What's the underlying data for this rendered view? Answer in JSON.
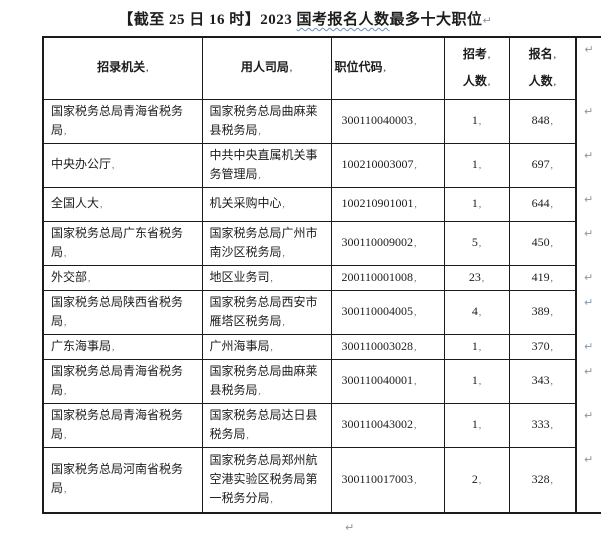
{
  "title": {
    "part1": "【截至 25 日 16 时】2023 ",
    "wavy": "国考报名人数",
    "part3": "最多十大职位"
  },
  "marks": {
    "paragraph": "↵",
    "cell": ","
  },
  "table": {
    "headers": {
      "col1": "招录机关",
      "col2": "用人司局",
      "col3": "职位代码",
      "col4_line1": "招考",
      "col4_line2": "人数",
      "col5_line1": "报名",
      "col5_line2": "人数"
    },
    "rows": [
      {
        "agency": "国家税务总局青海省税务局",
        "department": "国家税务总局曲麻莱县税务局",
        "code": "300110040003",
        "openings": "1",
        "applicants": "848"
      },
      {
        "agency": "中央办公厅",
        "department": "中共中央直属机关事务管理局",
        "code": "100210003007",
        "openings": "1",
        "applicants": "697"
      },
      {
        "agency": "全国人大",
        "department": "机关采购中心",
        "code": "100210901001",
        "openings": "1",
        "applicants": "644"
      },
      {
        "agency": "国家税务总局广东省税务局",
        "department": "国家税务总局广州市南沙区税务局",
        "code": "300110009002",
        "openings": "5",
        "applicants": "450"
      },
      {
        "agency": "外交部",
        "department": "地区业务司",
        "code": "200110001008",
        "openings": "23",
        "applicants": "419"
      },
      {
        "agency": "国家税务总局陕西省税务局",
        "department": "国家税务总局西安市雁塔区税务局",
        "code": "300110004005",
        "openings": "4",
        "applicants": "389"
      },
      {
        "agency": "广东海事局",
        "department": "广州海事局",
        "code": "300110003028",
        "openings": "1",
        "applicants": "370"
      },
      {
        "agency": "国家税务总局青海省税务局",
        "department": "国家税务总局曲麻莱县税务局",
        "code": "300110040001",
        "openings": "1",
        "applicants": "343"
      },
      {
        "agency": "国家税务总局青海省税务局",
        "department": "国家税务总局达日县税务局",
        "code": "300110043002",
        "openings": "1",
        "applicants": "333"
      },
      {
        "agency": "国家税务总局河南省税务局",
        "department": "国家税务总局郑州航空港实验区税务局第一税务分局",
        "code": "300110017003",
        "openings": "2",
        "applicants": "328"
      }
    ]
  }
}
